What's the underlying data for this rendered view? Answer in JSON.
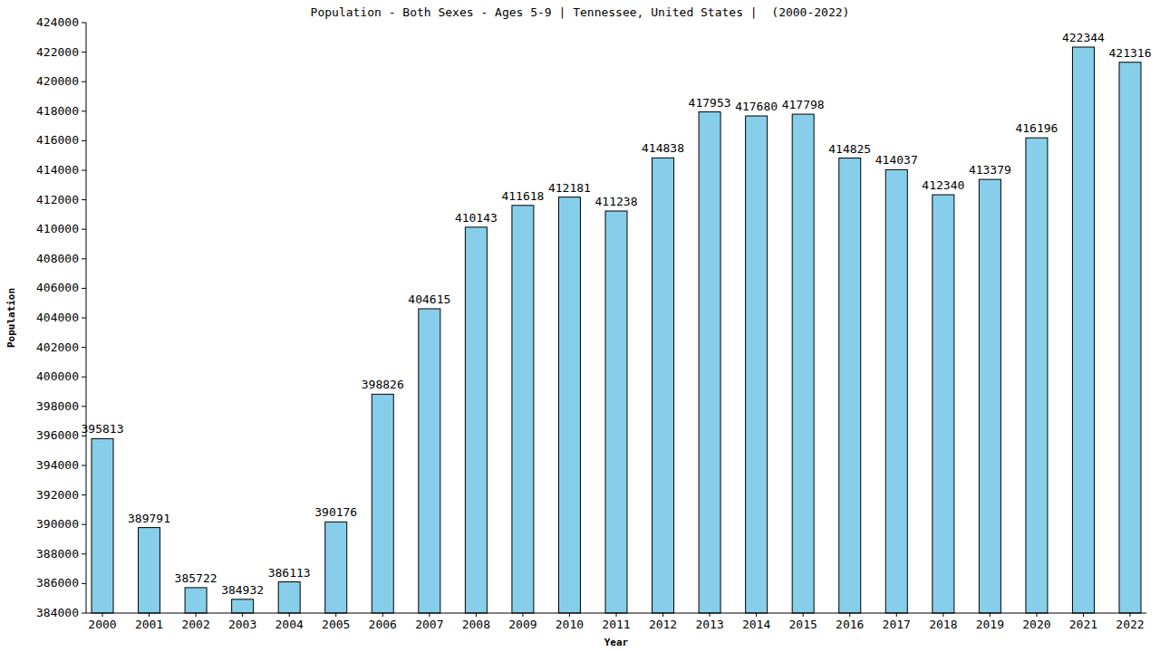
{
  "chart_data": {
    "type": "bar",
    "title": "Population - Both Sexes - Ages 5-9 | Tennessee, United States |  (2000-2022)",
    "x_label": "Year",
    "y_label": "Population",
    "categories": [
      "2000",
      "2001",
      "2002",
      "2003",
      "2004",
      "2005",
      "2006",
      "2007",
      "2008",
      "2009",
      "2010",
      "2011",
      "2012",
      "2013",
      "2014",
      "2015",
      "2016",
      "2017",
      "2018",
      "2019",
      "2020",
      "2021",
      "2022"
    ],
    "values": [
      395813,
      389791,
      385722,
      384932,
      386113,
      390176,
      398826,
      404615,
      410143,
      411618,
      412181,
      411238,
      414838,
      417953,
      417680,
      417798,
      414825,
      414037,
      412340,
      413379,
      416196,
      422344,
      421316
    ],
    "color": "#87ceeb",
    "ylim": [
      384000,
      424000
    ],
    "yticks": [
      384000,
      386000,
      388000,
      390000,
      392000,
      394000,
      396000,
      398000,
      400000,
      402000,
      404000,
      406000,
      408000,
      410000,
      412000,
      414000,
      416000,
      418000,
      420000,
      422000,
      424000
    ],
    "grid": false,
    "data_labels": true
  }
}
